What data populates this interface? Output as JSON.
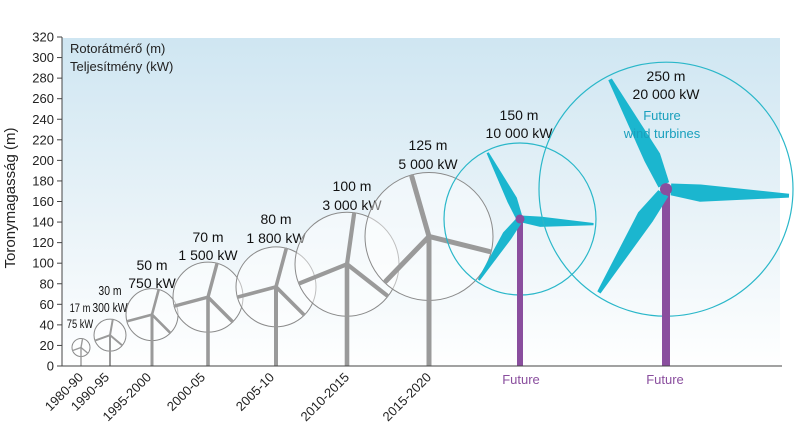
{
  "chart_data": {
    "type": "scatter",
    "ylabel": "Toronymagasság (m)",
    "ylim": [
      0,
      320
    ],
    "yticks": [
      0,
      20,
      40,
      60,
      80,
      100,
      120,
      140,
      160,
      180,
      200,
      220,
      240,
      260,
      280,
      300,
      320
    ],
    "legend": {
      "placement": "top-left",
      "lines": [
        "Rotorátmérő (m)",
        "Teljesítmény (kW)"
      ]
    },
    "categories": [
      "1980-90",
      "1990-95",
      "1995-2000",
      "2000-05",
      "2005-10",
      "2010-2015",
      "2015-2020",
      "Future",
      "Future"
    ],
    "turbines": [
      {
        "period": "1980-90",
        "hub_height_m": 18,
        "rotor_label": "17 m",
        "power_label": "75 kW",
        "future": false
      },
      {
        "period": "1990-95",
        "hub_height_m": 30,
        "rotor_label": "30 m",
        "power_label": "300 kW",
        "future": false
      },
      {
        "period": "1995-2000",
        "hub_height_m": 50,
        "rotor_label": "50 m",
        "power_label": "750 kW",
        "future": false
      },
      {
        "period": "2000-05",
        "hub_height_m": 67,
        "rotor_label": "70 m",
        "power_label": "1 500 kW",
        "future": false
      },
      {
        "period": "2005-10",
        "hub_height_m": 77,
        "rotor_label": "80 m",
        "power_label": "1 800 kW",
        "future": false
      },
      {
        "period": "2010-2015",
        "hub_height_m": 99,
        "rotor_label": "100 m",
        "power_label": "3 000 kW",
        "future": false
      },
      {
        "period": "2015-2020",
        "hub_height_m": 126,
        "rotor_label": "125 m",
        "power_label": "5 000 kW",
        "future": false
      },
      {
        "period": "Future",
        "hub_height_m": 143,
        "rotor_label": "150 m",
        "power_label": "10 000 kW",
        "future": true
      },
      {
        "period": "Future",
        "hub_height_m": 172,
        "rotor_label": "250 m",
        "power_label": "20 000 kW",
        "future": true,
        "note_lines": [
          "Future",
          "wind turbines"
        ]
      }
    ],
    "colors": {
      "current_turbine": "#9a9a9a",
      "future_blade": "#1bb6cf",
      "future_tower": "#8a4e9e",
      "rotor_circle_current": "#8a8a8a",
      "rotor_circle_future": "#2ab7c9",
      "future_note": "#1aa0bd",
      "background_top": "#cfe6f2"
    }
  }
}
